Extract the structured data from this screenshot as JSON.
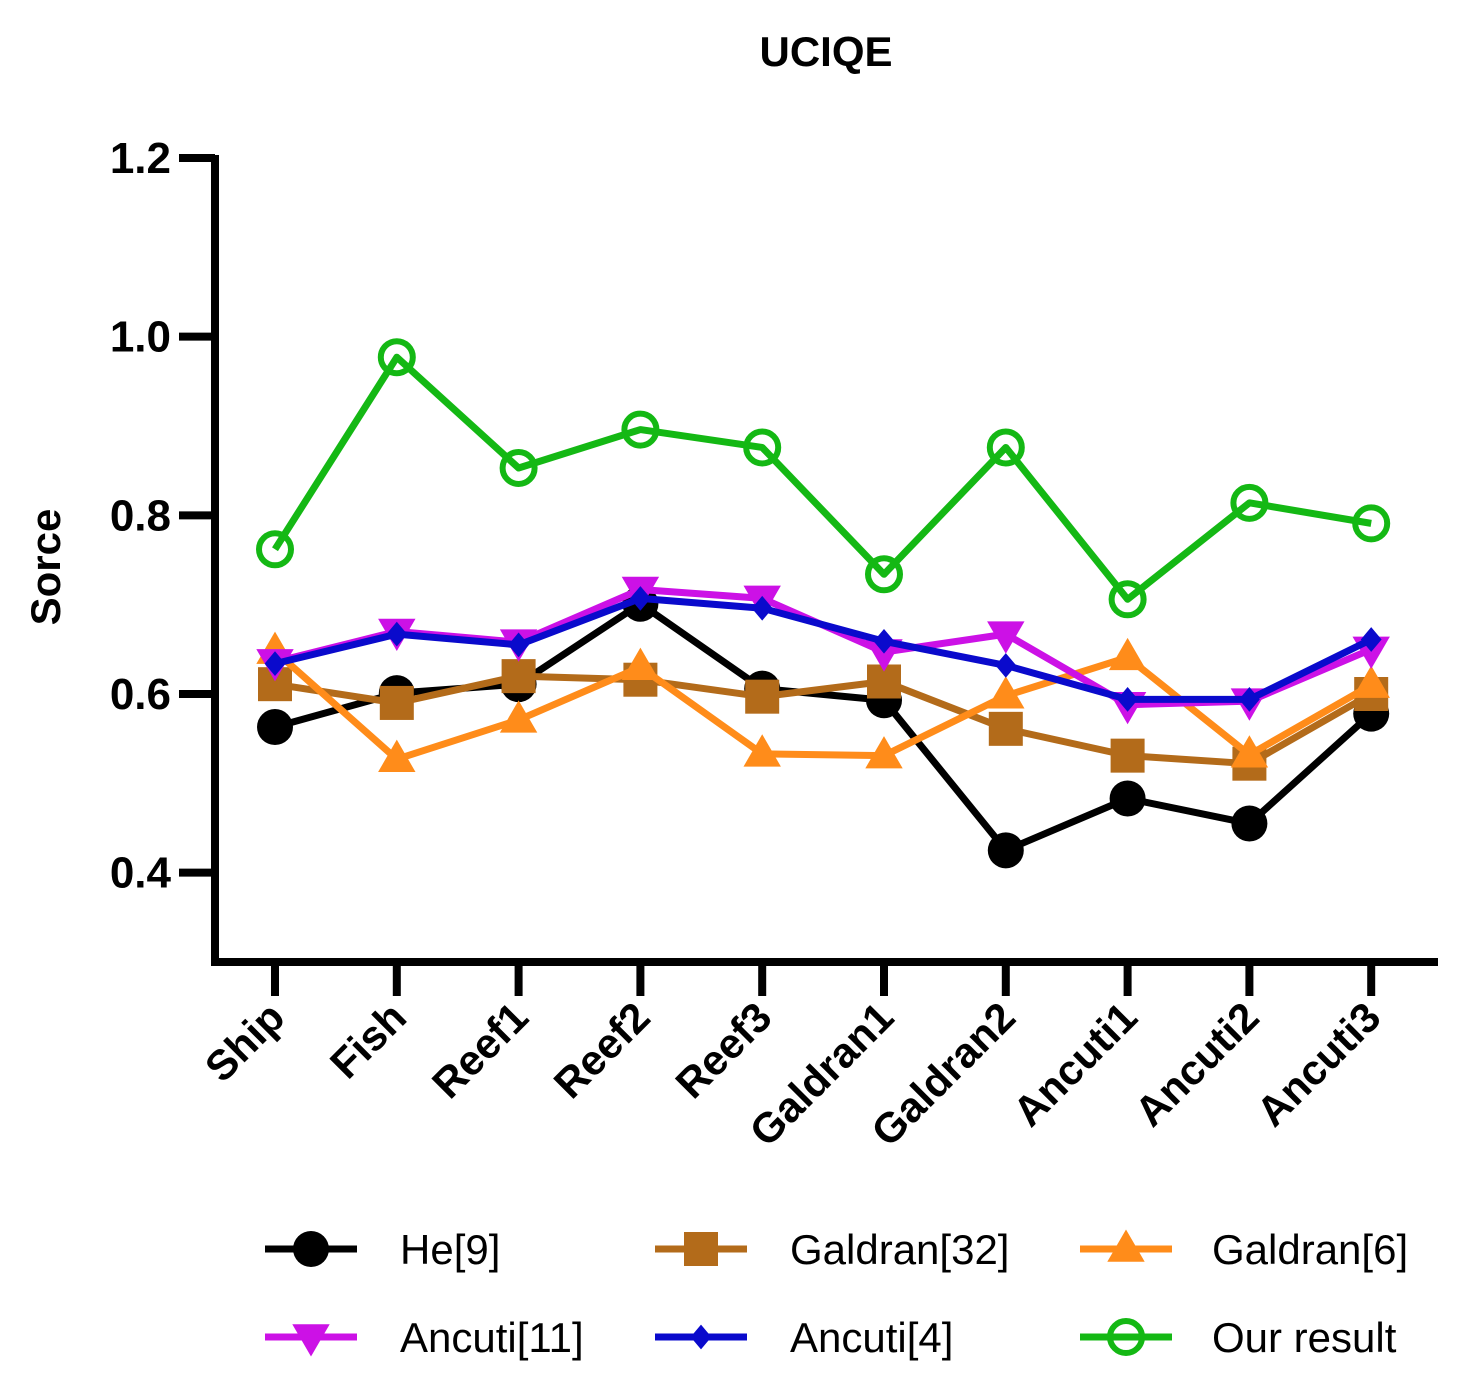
{
  "chart_data": {
    "type": "line",
    "title": "UCIQE",
    "xlabel": "",
    "ylabel": "Sorce",
    "ylim": [
      0.3,
      1.2
    ],
    "yticks": [
      0.4,
      0.6,
      0.8,
      1.0,
      1.2
    ],
    "ytick_labels": [
      "0.4",
      "0.6",
      "0.8",
      "1.0",
      "1.2"
    ],
    "categories": [
      "Ship",
      "Fish",
      "Reef1",
      "Reef2",
      "Reef3",
      "Galdran1",
      "Galdran2",
      "Ancuti1",
      "Ancuti2",
      "Ancuti3"
    ],
    "legend_position": "bottom",
    "series": [
      {
        "name": "He[9]",
        "color": "#000000",
        "marker": "circle",
        "values": [
          0.563,
          0.601,
          0.611,
          0.701,
          0.606,
          0.593,
          0.425,
          0.483,
          0.455,
          0.578
        ]
      },
      {
        "name": "Galdran[32]",
        "color": "#B36B1A",
        "marker": "square",
        "values": [
          0.611,
          0.59,
          0.62,
          0.616,
          0.597,
          0.614,
          0.561,
          0.531,
          0.522,
          0.6
        ]
      },
      {
        "name": "Galdran[6]",
        "color": "#FF8C1A",
        "marker": "triangle-up",
        "values": [
          0.648,
          0.527,
          0.571,
          0.63,
          0.533,
          0.531,
          0.598,
          0.641,
          0.532,
          0.61
        ]
      },
      {
        "name": "Ancuti[11]",
        "color": "#CC11E6",
        "marker": "triangle-down",
        "values": [
          0.636,
          0.67,
          0.658,
          0.717,
          0.707,
          0.647,
          0.667,
          0.588,
          0.592,
          0.65
        ]
      },
      {
        "name": "Ancuti[4]",
        "color": "#0A0ACC",
        "marker": "diamond",
        "values": [
          0.634,
          0.667,
          0.655,
          0.707,
          0.696,
          0.659,
          0.632,
          0.594,
          0.594,
          0.661
        ]
      },
      {
        "name": "Our result",
        "color": "#14B814",
        "marker": "open-circle",
        "values": [
          0.762,
          0.977,
          0.853,
          0.896,
          0.876,
          0.734,
          0.876,
          0.706,
          0.814,
          0.791
        ]
      }
    ]
  }
}
